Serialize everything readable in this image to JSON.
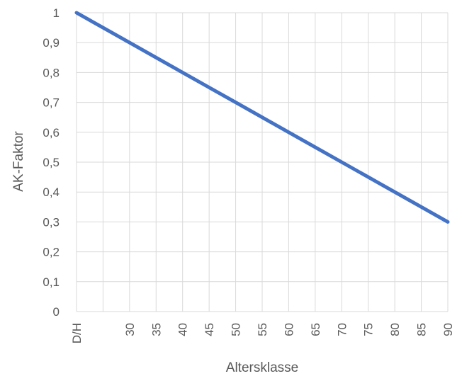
{
  "chart_data": {
    "type": "line",
    "title": "",
    "xlabel": "Altersklasse",
    "ylabel": "AK-Faktor",
    "categories": [
      "D/H",
      "",
      "30",
      "35",
      "40",
      "45",
      "50",
      "55",
      "60",
      "65",
      "70",
      "75",
      "80",
      "85",
      "90"
    ],
    "series": [
      {
        "values": [
          1.0,
          0.95,
          0.9,
          0.85,
          0.8,
          0.75,
          0.7,
          0.65,
          0.6,
          0.55,
          0.5,
          0.45,
          0.4,
          0.35,
          0.3
        ],
        "color": "#4472C4"
      }
    ],
    "y_ticks": [
      "0",
      "0,1",
      "0,2",
      "0,3",
      "0,4",
      "0,5",
      "0,6",
      "0,7",
      "0,8",
      "0,9",
      "1"
    ],
    "ylim": [
      0,
      1
    ],
    "grid": true,
    "legend": "none"
  }
}
